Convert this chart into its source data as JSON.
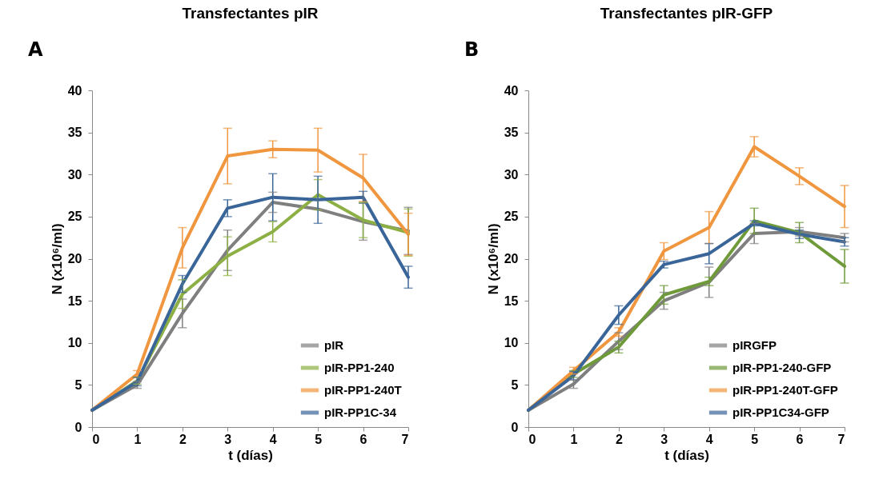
{
  "chart_data": [
    {
      "type": "line",
      "title": "Transfectantes pIR",
      "xlabel": "t (días)",
      "ylabel": "N (x10⁶/ml)",
      "annotations": [
        "A"
      ],
      "x": [
        0,
        1,
        2,
        3,
        4,
        5,
        6,
        7
      ],
      "xlim": [
        0,
        7
      ],
      "xticks": [
        0,
        1,
        2,
        3,
        4,
        5,
        6,
        7
      ],
      "ylim": [
        0,
        40
      ],
      "yticks": [
        0,
        5,
        10,
        15,
        20,
        25,
        30,
        35,
        40
      ],
      "legend": "bottom right",
      "series": [
        {
          "name": "pIR",
          "color": "#7f7f7f",
          "values": [
            2,
            5,
            13.5,
            21,
            26.7,
            25.9,
            24.4,
            23.3
          ],
          "errors": [
            null,
            0.4,
            1.7,
            2.4,
            1.2,
            null,
            2.2,
            2.8
          ]
        },
        {
          "name": "pIR-PP1-240",
          "color": "#8db045",
          "values": [
            2,
            5.5,
            15.8,
            20.3,
            23.2,
            27.6,
            24.6,
            23.1
          ],
          "errors": [
            null,
            0.4,
            1.7,
            2.3,
            1.2,
            1.8,
            2.1,
            2.8
          ]
        },
        {
          "name": "pIR-PP1-240T",
          "color": "#f0963f",
          "values": [
            2,
            6.3,
            21.3,
            32.2,
            33,
            32.9,
            29.6,
            22.9
          ],
          "errors": [
            null,
            0.4,
            2.4,
            3.3,
            1,
            2.6,
            2.8,
            2.5
          ]
        },
        {
          "name": "pIR-PP1C-34",
          "color": "#3a6598",
          "values": [
            2,
            5.4,
            17,
            26,
            27.3,
            27,
            27.3,
            17.8
          ],
          "errors": [
            null,
            0.5,
            1,
            1,
            2.8,
            2.8,
            0.7,
            1.3
          ]
        }
      ]
    },
    {
      "type": "line",
      "title": "Transfectantes pIR-GFP",
      "xlabel": "t (días)",
      "ylabel": "N (x10⁶/ml)",
      "annotations": [
        "B"
      ],
      "x": [
        0,
        1,
        2,
        3,
        4,
        5,
        6,
        7
      ],
      "xlim": [
        0,
        7
      ],
      "xticks": [
        0,
        1,
        2,
        3,
        4,
        5,
        6,
        7
      ],
      "ylim": [
        0,
        40
      ],
      "yticks": [
        0,
        5,
        10,
        15,
        20,
        25,
        30,
        35,
        40
      ],
      "legend": "bottom right",
      "series": [
        {
          "name": "pIRGFP",
          "color": "#7f7f7f",
          "values": [
            2,
            5.1,
            10.2,
            15,
            17.2,
            23,
            23.2,
            22.5
          ],
          "errors": [
            null,
            0.5,
            1,
            1,
            1.8,
            1.2,
            0.5,
            0.5
          ]
        },
        {
          "name": "pIR-PP1-240-GFP",
          "color": "#6f9a3a",
          "values": [
            2,
            6.3,
            9.5,
            15.7,
            17.3,
            24.5,
            23.1,
            19.1
          ],
          "errors": [
            null,
            0.4,
            0.7,
            1.1,
            0.5,
            1.5,
            1.2,
            2
          ]
        },
        {
          "name": "pIR-PP1-240T-GFP",
          "color": "#f0963f",
          "values": [
            2,
            6.7,
            11.3,
            20.9,
            23.7,
            33.3,
            29.8,
            26.2
          ],
          "errors": [
            null,
            0.4,
            0.5,
            1,
            1.9,
            1.2,
            1,
            2.5
          ]
        },
        {
          "name": "pIR-PP1C34-GFP",
          "color": "#3a6598",
          "values": [
            2,
            6.1,
            13.3,
            19.3,
            20.6,
            24.2,
            22.9,
            22
          ],
          "errors": [
            null,
            0.5,
            1.1,
            0.4,
            1.2,
            0.3,
            0.5,
            0.5
          ]
        }
      ]
    }
  ]
}
